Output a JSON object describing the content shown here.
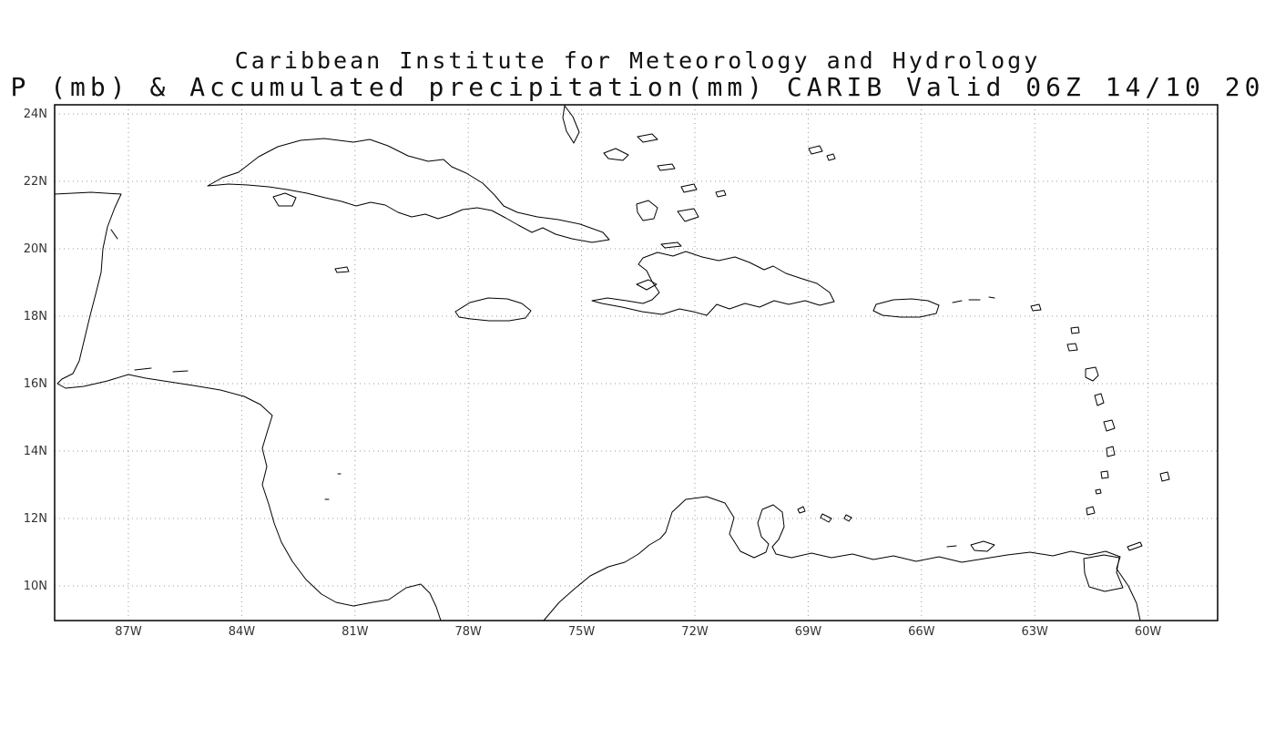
{
  "header": {
    "line1": "Caribbean Institute for Meteorology and Hydrology",
    "line2": "P (mb) & Accumulated precipitation(mm) CARIB Valid 06Z 14/10 20"
  },
  "map": {
    "lat_ticks": [
      "24N",
      "22N",
      "20N",
      "18N",
      "16N",
      "14N",
      "12N",
      "10N"
    ],
    "lon_ticks": [
      "87W",
      "84W",
      "81W",
      "78W",
      "75W",
      "72W",
      "69W",
      "66W",
      "63W",
      "60W"
    ],
    "colors": {
      "background": "#ffffff",
      "coastline": "#000000",
      "border": "#000000",
      "grid": "#999999",
      "label": "#333333"
    }
  }
}
